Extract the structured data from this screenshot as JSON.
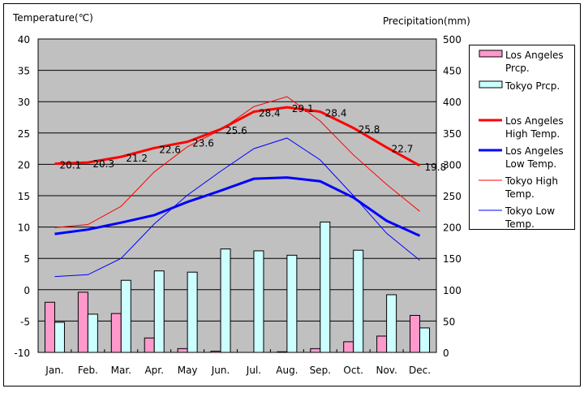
{
  "chart_data": {
    "type": "bar+line",
    "categories": [
      "Jan.",
      "Feb.",
      "Mar.",
      "Apr.",
      "May",
      "Jun.",
      "Jul.",
      "Aug.",
      "Sep.",
      "Oct.",
      "Nov.",
      "Dec."
    ],
    "ylabel_left": "Temperature(℃)",
    "ylabel_right": "Precipitation(mm)",
    "ylim_left": [
      -10,
      40
    ],
    "ylim_right": [
      0,
      500
    ],
    "yticks_left": [
      "40",
      "35",
      "30",
      "25",
      "20",
      "15",
      "10",
      "5",
      "0",
      "-5",
      "-10"
    ],
    "yticks_right": [
      "500",
      "450",
      "400",
      "350",
      "300",
      "250",
      "200",
      "150",
      "100",
      "50",
      "0"
    ],
    "grid": true,
    "legend_placement": "right",
    "bar_series": [
      {
        "name": "Los Angeles Prcp.",
        "name_lines": [
          "Los Angeles",
          "Prcp."
        ],
        "color": "#ff99cc",
        "values": [
          80,
          96,
          62,
          23,
          6,
          2,
          0,
          1,
          6,
          17,
          26,
          59
        ]
      },
      {
        "name": "Tokyo Prcp.",
        "name_lines": [
          "Tokyo Prcp."
        ],
        "color": "#ccffff",
        "values": [
          48,
          61,
          115,
          130,
          128,
          165,
          162,
          155,
          208,
          163,
          92,
          39
        ]
      }
    ],
    "line_series": [
      {
        "name": "Los Angeles High Temp.",
        "name_lines": [
          "Los Angeles",
          "High Temp."
        ],
        "color": "#ff0000",
        "thick": true,
        "values": [
          20.1,
          20.3,
          21.2,
          22.6,
          23.6,
          25.6,
          28.4,
          29.1,
          28.4,
          25.8,
          22.7,
          19.8
        ],
        "labels": [
          "20.1",
          "20.3",
          "21.2",
          "22.6",
          "23.6",
          "25.6",
          "28.4",
          "29.1",
          "28.4",
          "25.8",
          "22.7",
          "19.8"
        ]
      },
      {
        "name": "Los Angeles Low Temp.",
        "name_lines": [
          "Los Angeles",
          "Low Temp."
        ],
        "color": "#0000ff",
        "thick": true,
        "values": [
          8.9,
          9.6,
          10.7,
          11.9,
          14.0,
          15.8,
          17.7,
          17.9,
          17.3,
          14.7,
          11.0,
          8.6
        ]
      },
      {
        "name": "Tokyo High Temp.",
        "name_lines": [
          "Tokyo High",
          "Temp."
        ],
        "color": "#ff0000",
        "thick": false,
        "values": [
          9.9,
          10.4,
          13.3,
          18.8,
          22.8,
          25.5,
          29.2,
          30.8,
          26.9,
          21.5,
          16.8,
          12.5
        ]
      },
      {
        "name": "Tokyo Low Temp.",
        "name_lines": [
          "Tokyo Low",
          "Temp."
        ],
        "color": "#0000ff",
        "thick": false,
        "values": [
          2.1,
          2.4,
          5.0,
          10.5,
          15.1,
          18.9,
          22.5,
          24.2,
          20.7,
          15.0,
          9.0,
          4.7
        ]
      }
    ]
  }
}
